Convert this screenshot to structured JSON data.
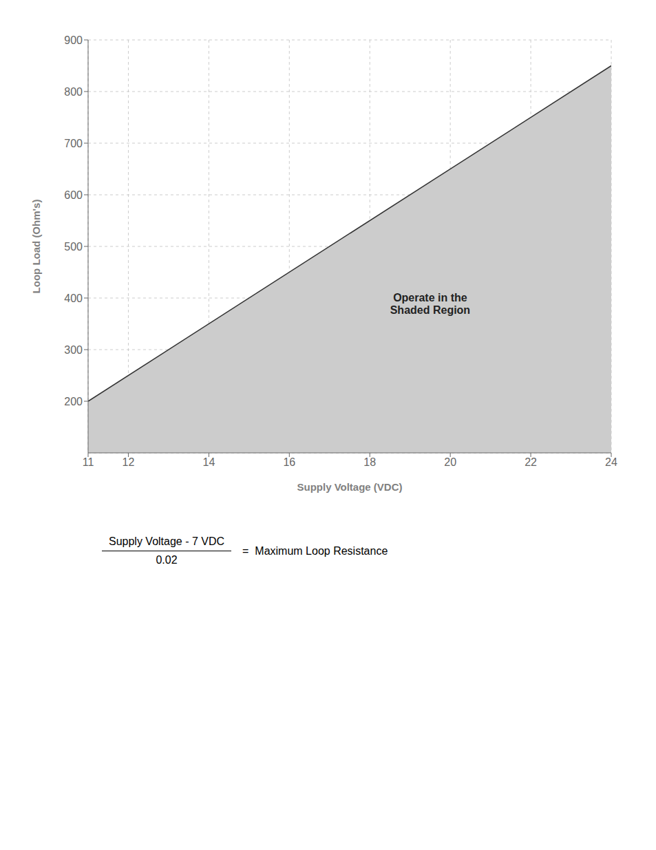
{
  "chart_data": {
    "type": "area",
    "x": [
      11,
      24
    ],
    "values": [
      200,
      850
    ],
    "color": "#cccccc",
    "xlabel": "Supply Voltage (VDC)",
    "ylabel": "Loop Load (Ohm's)",
    "xlim": [
      11,
      24
    ],
    "xticks": [
      11,
      12,
      14,
      16,
      18,
      20,
      22,
      24
    ],
    "ylim": [
      100,
      900
    ],
    "yticks": [
      200,
      300,
      400,
      500,
      600,
      700,
      800,
      900
    ],
    "grid": true,
    "annotations": [
      {
        "text": "Operate in the\nShaded Region",
        "x": 19.5,
        "y": 390
      }
    ],
    "formula": {
      "numerator": "Supply Voltage - 7 VDC",
      "denominator": "0.02",
      "rhs": "=  Maximum Loop Resistance"
    }
  }
}
